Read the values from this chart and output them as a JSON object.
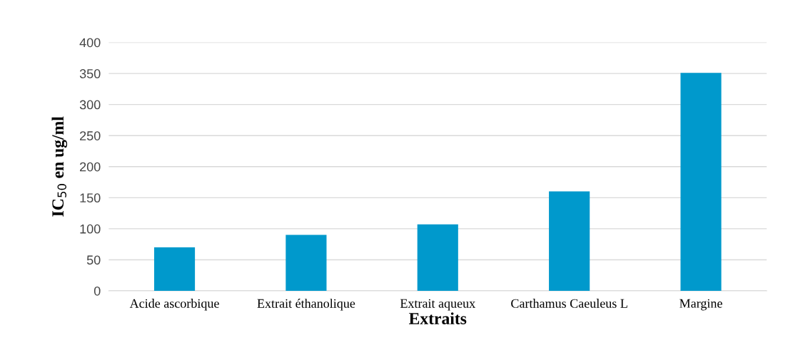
{
  "chart_data": {
    "type": "bar",
    "xlabel": "Extraits",
    "ylabel": "IC$_{50}$ en ug/ml",
    "categories": [
      "Acide ascorbique",
      "Extrait éthanolique",
      "Extrait aqueux",
      "Carthamus Caeuleus L",
      "Margine"
    ],
    "values": [
      70,
      90,
      107,
      160,
      351
    ],
    "color": "#0099cc",
    "ylim": [
      0,
      400
    ],
    "yticks": [
      0,
      50,
      100,
      150,
      200,
      250,
      300,
      350,
      400
    ],
    "grid": "y"
  }
}
